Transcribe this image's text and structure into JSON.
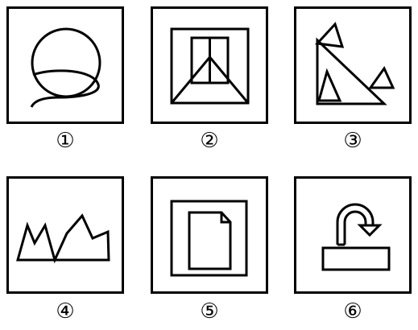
{
  "labels": [
    "①",
    "②",
    "③",
    "④",
    "⑤",
    "⑥"
  ],
  "figures": [
    {
      "id": 1,
      "content": "circle-with-spiral-curve"
    },
    {
      "id": 2,
      "content": "nested-square-with-window-and-triangle"
    },
    {
      "id": 3,
      "content": "large-triangle-with-three-small-triangles"
    },
    {
      "id": 4,
      "content": "jagged-zigzag-crown"
    },
    {
      "id": 5,
      "content": "square-frame-with-document-icon"
    },
    {
      "id": 6,
      "content": "curved-arrow-above-rectangle"
    }
  ],
  "colors": {
    "stroke": "#000000",
    "background": "#ffffff"
  }
}
